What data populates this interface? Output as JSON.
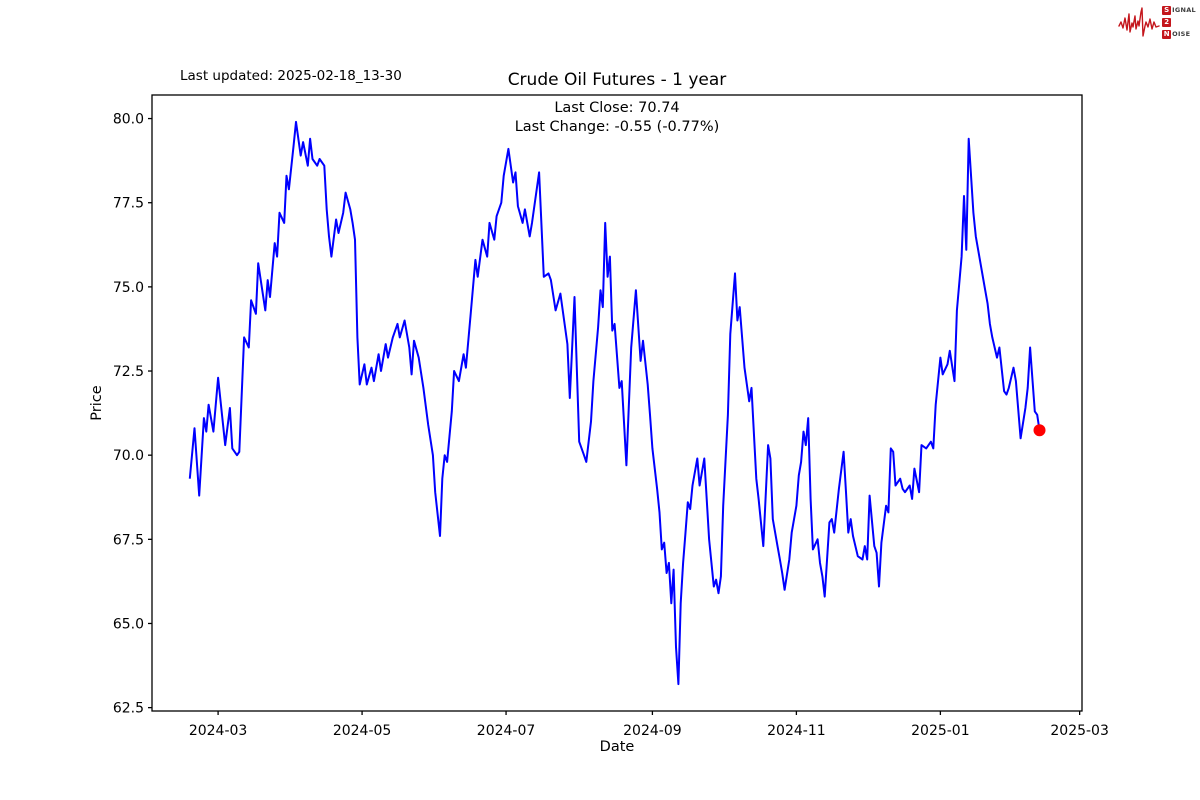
{
  "header": {
    "last_updated": "Last updated: 2025-02-18_13-30"
  },
  "logo": {
    "rows": [
      {
        "initial": "S",
        "rest": "IGNAL"
      },
      {
        "initial": "2",
        "rest": ""
      },
      {
        "initial": "N",
        "rest": "OISE"
      }
    ],
    "accent_color": "#c4161c"
  },
  "chart_data": {
    "type": "line",
    "title": "Crude Oil Futures - 1 year",
    "annotation_lines": [
      "Last Close: 70.74",
      "Last Change: -0.55 (-0.77%)"
    ],
    "xlabel": "Date",
    "ylabel": "Price",
    "grid": false,
    "legend": "none",
    "line_color": "#0000ff",
    "marker_color": "#ff0000",
    "xlim": [
      "2024-02-02",
      "2025-03-02"
    ],
    "ylim": [
      62.4,
      80.7
    ],
    "y_ticks": [
      62.5,
      65.0,
      67.5,
      70.0,
      72.5,
      75.0,
      77.5,
      80.0
    ],
    "x_ticks": [
      {
        "date": "2024-03-01",
        "label": "2024-03"
      },
      {
        "date": "2024-05-01",
        "label": "2024-05"
      },
      {
        "date": "2024-07-01",
        "label": "2024-07"
      },
      {
        "date": "2024-09-01",
        "label": "2024-09"
      },
      {
        "date": "2024-11-01",
        "label": "2024-11"
      },
      {
        "date": "2025-01-01",
        "label": "2025-01"
      },
      {
        "date": "2025-03-01",
        "label": "2025-03"
      }
    ],
    "last_close": 70.74,
    "last_change": -0.55,
    "last_change_pct": -0.77,
    "series": [
      {
        "name": "Crude Oil Futures",
        "points": [
          [
            "2024-02-18",
            69.3
          ],
          [
            "2024-02-20",
            70.8
          ],
          [
            "2024-02-22",
            68.8
          ],
          [
            "2024-02-24",
            71.1
          ],
          [
            "2024-02-25",
            70.7
          ],
          [
            "2024-02-26",
            71.5
          ],
          [
            "2024-02-28",
            70.7
          ],
          [
            "2024-03-01",
            72.3
          ],
          [
            "2024-03-04",
            70.3
          ],
          [
            "2024-03-06",
            71.4
          ],
          [
            "2024-03-07",
            70.2
          ],
          [
            "2024-03-09",
            70.0
          ],
          [
            "2024-03-10",
            70.1
          ],
          [
            "2024-03-12",
            73.5
          ],
          [
            "2024-03-14",
            73.2
          ],
          [
            "2024-03-15",
            74.6
          ],
          [
            "2024-03-17",
            74.2
          ],
          [
            "2024-03-18",
            75.7
          ],
          [
            "2024-03-21",
            74.3
          ],
          [
            "2024-03-22",
            75.2
          ],
          [
            "2024-03-23",
            74.7
          ],
          [
            "2024-03-25",
            76.3
          ],
          [
            "2024-03-26",
            75.9
          ],
          [
            "2024-03-27",
            77.2
          ],
          [
            "2024-03-29",
            76.9
          ],
          [
            "2024-03-30",
            78.3
          ],
          [
            "2024-03-31",
            77.9
          ],
          [
            "2024-04-02",
            79.2
          ],
          [
            "2024-04-03",
            79.9
          ],
          [
            "2024-04-05",
            78.9
          ],
          [
            "2024-04-06",
            79.3
          ],
          [
            "2024-04-08",
            78.6
          ],
          [
            "2024-04-09",
            79.4
          ],
          [
            "2024-04-10",
            78.8
          ],
          [
            "2024-04-12",
            78.6
          ],
          [
            "2024-04-13",
            78.8
          ],
          [
            "2024-04-15",
            78.6
          ],
          [
            "2024-04-16",
            77.3
          ],
          [
            "2024-04-17",
            76.5
          ],
          [
            "2024-04-18",
            75.9
          ],
          [
            "2024-04-20",
            77.0
          ],
          [
            "2024-04-21",
            76.6
          ],
          [
            "2024-04-23",
            77.2
          ],
          [
            "2024-04-24",
            77.8
          ],
          [
            "2024-04-26",
            77.3
          ],
          [
            "2024-04-27",
            76.9
          ],
          [
            "2024-04-28",
            76.4
          ],
          [
            "2024-04-29",
            73.5
          ],
          [
            "2024-04-30",
            72.1
          ],
          [
            "2024-05-02",
            72.7
          ],
          [
            "2024-05-03",
            72.1
          ],
          [
            "2024-05-05",
            72.6
          ],
          [
            "2024-05-06",
            72.2
          ],
          [
            "2024-05-08",
            73.0
          ],
          [
            "2024-05-09",
            72.5
          ],
          [
            "2024-05-11",
            73.3
          ],
          [
            "2024-05-12",
            72.9
          ],
          [
            "2024-05-14",
            73.5
          ],
          [
            "2024-05-16",
            73.9
          ],
          [
            "2024-05-17",
            73.5
          ],
          [
            "2024-05-19",
            74.0
          ],
          [
            "2024-05-21",
            73.2
          ],
          [
            "2024-05-22",
            72.4
          ],
          [
            "2024-05-23",
            73.4
          ],
          [
            "2024-05-25",
            72.9
          ],
          [
            "2024-05-27",
            72.0
          ],
          [
            "2024-05-29",
            70.9
          ],
          [
            "2024-05-31",
            70.0
          ],
          [
            "2024-06-01",
            68.9
          ],
          [
            "2024-06-03",
            67.6
          ],
          [
            "2024-06-04",
            69.3
          ],
          [
            "2024-06-05",
            70.0
          ],
          [
            "2024-06-06",
            69.8
          ],
          [
            "2024-06-08",
            71.3
          ],
          [
            "2024-06-09",
            72.5
          ],
          [
            "2024-06-11",
            72.2
          ],
          [
            "2024-06-13",
            73.0
          ],
          [
            "2024-06-14",
            72.6
          ],
          [
            "2024-06-16",
            74.2
          ],
          [
            "2024-06-18",
            75.8
          ],
          [
            "2024-06-19",
            75.3
          ],
          [
            "2024-06-21",
            76.4
          ],
          [
            "2024-06-23",
            75.9
          ],
          [
            "2024-06-24",
            76.9
          ],
          [
            "2024-06-26",
            76.4
          ],
          [
            "2024-06-27",
            77.1
          ],
          [
            "2024-06-29",
            77.5
          ],
          [
            "2024-06-30",
            78.3
          ],
          [
            "2024-07-02",
            79.1
          ],
          [
            "2024-07-04",
            78.1
          ],
          [
            "2024-07-05",
            78.4
          ],
          [
            "2024-07-06",
            77.4
          ],
          [
            "2024-07-08",
            76.9
          ],
          [
            "2024-07-09",
            77.3
          ],
          [
            "2024-07-11",
            76.5
          ],
          [
            "2024-07-12",
            76.9
          ],
          [
            "2024-07-15",
            78.4
          ],
          [
            "2024-07-17",
            75.3
          ],
          [
            "2024-07-19",
            75.4
          ],
          [
            "2024-07-20",
            75.2
          ],
          [
            "2024-07-22",
            74.3
          ],
          [
            "2024-07-24",
            74.8
          ],
          [
            "2024-07-27",
            73.3
          ],
          [
            "2024-07-28",
            71.7
          ],
          [
            "2024-07-30",
            74.7
          ],
          [
            "2024-08-01",
            70.4
          ],
          [
            "2024-08-03",
            70.0
          ],
          [
            "2024-08-04",
            69.8
          ],
          [
            "2024-08-06",
            71.0
          ],
          [
            "2024-08-07",
            72.2
          ],
          [
            "2024-08-09",
            73.8
          ],
          [
            "2024-08-10",
            74.9
          ],
          [
            "2024-08-11",
            74.4
          ],
          [
            "2024-08-12",
            76.9
          ],
          [
            "2024-08-13",
            75.3
          ],
          [
            "2024-08-14",
            75.9
          ],
          [
            "2024-08-15",
            73.7
          ],
          [
            "2024-08-16",
            73.9
          ],
          [
            "2024-08-18",
            72.0
          ],
          [
            "2024-08-19",
            72.2
          ],
          [
            "2024-08-21",
            69.7
          ],
          [
            "2024-08-23",
            73.2
          ],
          [
            "2024-08-25",
            74.9
          ],
          [
            "2024-08-27",
            72.8
          ],
          [
            "2024-08-28",
            73.4
          ],
          [
            "2024-08-30",
            72.1
          ],
          [
            "2024-08-31",
            71.2
          ],
          [
            "2024-09-01",
            70.2
          ],
          [
            "2024-09-03",
            69.0
          ],
          [
            "2024-09-04",
            68.3
          ],
          [
            "2024-09-05",
            67.2
          ],
          [
            "2024-09-06",
            67.4
          ],
          [
            "2024-09-07",
            66.5
          ],
          [
            "2024-09-08",
            66.8
          ],
          [
            "2024-09-09",
            65.6
          ],
          [
            "2024-09-10",
            66.6
          ],
          [
            "2024-09-11",
            64.3
          ],
          [
            "2024-09-12",
            63.2
          ],
          [
            "2024-09-13",
            65.6
          ],
          [
            "2024-09-14",
            66.8
          ],
          [
            "2024-09-15",
            67.7
          ],
          [
            "2024-09-16",
            68.6
          ],
          [
            "2024-09-17",
            68.4
          ],
          [
            "2024-09-18",
            69.1
          ],
          [
            "2024-09-20",
            69.9
          ],
          [
            "2024-09-21",
            69.1
          ],
          [
            "2024-09-23",
            69.9
          ],
          [
            "2024-09-25",
            67.5
          ],
          [
            "2024-09-27",
            66.1
          ],
          [
            "2024-09-28",
            66.3
          ],
          [
            "2024-09-29",
            65.9
          ],
          [
            "2024-09-30",
            66.4
          ],
          [
            "2024-10-01",
            68.5
          ],
          [
            "2024-10-03",
            71.2
          ],
          [
            "2024-10-04",
            73.6
          ],
          [
            "2024-10-06",
            75.4
          ],
          [
            "2024-10-07",
            74.0
          ],
          [
            "2024-10-08",
            74.4
          ],
          [
            "2024-10-10",
            72.6
          ],
          [
            "2024-10-12",
            71.6
          ],
          [
            "2024-10-13",
            72.0
          ],
          [
            "2024-10-15",
            69.3
          ],
          [
            "2024-10-16",
            68.7
          ],
          [
            "2024-10-18",
            67.3
          ],
          [
            "2024-10-20",
            70.3
          ],
          [
            "2024-10-21",
            69.9
          ],
          [
            "2024-10-22",
            68.1
          ],
          [
            "2024-10-24",
            67.3
          ],
          [
            "2024-10-25",
            66.9
          ],
          [
            "2024-10-26",
            66.5
          ],
          [
            "2024-10-27",
            66.0
          ],
          [
            "2024-10-29",
            66.9
          ],
          [
            "2024-10-30",
            67.7
          ],
          [
            "2024-11-01",
            68.5
          ],
          [
            "2024-11-02",
            69.4
          ],
          [
            "2024-11-03",
            69.8
          ],
          [
            "2024-11-04",
            70.7
          ],
          [
            "2024-11-05",
            70.3
          ],
          [
            "2024-11-06",
            71.1
          ],
          [
            "2024-11-07",
            68.7
          ],
          [
            "2024-11-08",
            67.2
          ],
          [
            "2024-11-10",
            67.5
          ],
          [
            "2024-11-11",
            66.8
          ],
          [
            "2024-11-12",
            66.4
          ],
          [
            "2024-11-13",
            65.8
          ],
          [
            "2024-11-15",
            68.0
          ],
          [
            "2024-11-16",
            68.1
          ],
          [
            "2024-11-17",
            67.7
          ],
          [
            "2024-11-19",
            69.0
          ],
          [
            "2024-11-21",
            70.1
          ],
          [
            "2024-11-22",
            68.9
          ],
          [
            "2024-11-23",
            67.7
          ],
          [
            "2024-11-24",
            68.1
          ],
          [
            "2024-11-25",
            67.6
          ],
          [
            "2024-11-27",
            67.0
          ],
          [
            "2024-11-29",
            66.9
          ],
          [
            "2024-11-30",
            67.3
          ],
          [
            "2024-12-01",
            66.9
          ],
          [
            "2024-12-02",
            68.8
          ],
          [
            "2024-12-04",
            67.3
          ],
          [
            "2024-12-05",
            67.1
          ],
          [
            "2024-12-06",
            66.1
          ],
          [
            "2024-12-07",
            67.4
          ],
          [
            "2024-12-09",
            68.5
          ],
          [
            "2024-12-10",
            68.3
          ],
          [
            "2024-12-11",
            70.2
          ],
          [
            "2024-12-12",
            70.1
          ],
          [
            "2024-12-13",
            69.1
          ],
          [
            "2024-12-15",
            69.3
          ],
          [
            "2024-12-16",
            69.0
          ],
          [
            "2024-12-17",
            68.9
          ],
          [
            "2024-12-19",
            69.1
          ],
          [
            "2024-12-20",
            68.7
          ],
          [
            "2024-12-21",
            69.6
          ],
          [
            "2024-12-23",
            68.9
          ],
          [
            "2024-12-24",
            70.3
          ],
          [
            "2024-12-26",
            70.2
          ],
          [
            "2024-12-28",
            70.4
          ],
          [
            "2024-12-29",
            70.2
          ],
          [
            "2024-12-30",
            71.5
          ],
          [
            "2025-01-01",
            72.9
          ],
          [
            "2025-01-02",
            72.4
          ],
          [
            "2025-01-04",
            72.7
          ],
          [
            "2025-01-05",
            73.1
          ],
          [
            "2025-01-07",
            72.2
          ],
          [
            "2025-01-08",
            74.3
          ],
          [
            "2025-01-10",
            75.9
          ],
          [
            "2025-01-11",
            77.7
          ],
          [
            "2025-01-12",
            76.1
          ],
          [
            "2025-01-13",
            79.4
          ],
          [
            "2025-01-15",
            77.2
          ],
          [
            "2025-01-16",
            76.5
          ],
          [
            "2025-01-18",
            75.7
          ],
          [
            "2025-01-20",
            74.9
          ],
          [
            "2025-01-21",
            74.5
          ],
          [
            "2025-01-22",
            73.9
          ],
          [
            "2025-01-23",
            73.5
          ],
          [
            "2025-01-25",
            72.9
          ],
          [
            "2025-01-26",
            73.2
          ],
          [
            "2025-01-28",
            71.9
          ],
          [
            "2025-01-29",
            71.8
          ],
          [
            "2025-01-30",
            72.0
          ],
          [
            "2025-02-01",
            72.6
          ],
          [
            "2025-02-02",
            72.2
          ],
          [
            "2025-02-04",
            70.5
          ],
          [
            "2025-02-06",
            71.4
          ],
          [
            "2025-02-07",
            72.0
          ],
          [
            "2025-02-08",
            73.2
          ],
          [
            "2025-02-10",
            71.3
          ],
          [
            "2025-02-11",
            71.2
          ],
          [
            "2025-02-12",
            70.74
          ]
        ]
      }
    ]
  }
}
